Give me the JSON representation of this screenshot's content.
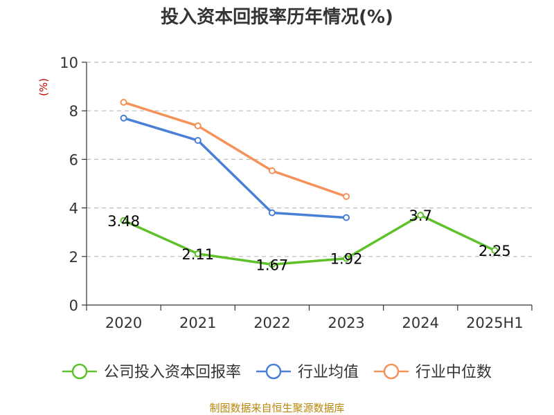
{
  "chart_data": {
    "type": "line",
    "title": "投入资本回报率历年情况(%)",
    "ylabel": "(%)",
    "xlabel": "",
    "categories": [
      "2020",
      "2021",
      "2022",
      "2023",
      "2024",
      "2025H1"
    ],
    "ylim": [
      0,
      10
    ],
    "yticks": [
      0,
      2,
      4,
      6,
      8,
      10
    ],
    "grid": true,
    "legend_position": "bottom",
    "series": [
      {
        "name": "公司投入资本回报率",
        "color": "#5ec12a",
        "values": [
          3.48,
          2.11,
          1.67,
          1.92,
          3.7,
          2.25
        ],
        "labels": [
          "3.48",
          "2.11",
          "1.67",
          "1.92",
          "3.7",
          "2.25"
        ]
      },
      {
        "name": "行业均值",
        "color": "#4a7fd8",
        "values": [
          7.7,
          6.78,
          3.8,
          3.6,
          null,
          null
        ]
      },
      {
        "name": "行业中位数",
        "color": "#f4925a",
        "values": [
          8.35,
          7.38,
          5.53,
          4.47,
          null,
          null
        ]
      }
    ]
  },
  "source": "制图数据来自恒生聚源数据库"
}
